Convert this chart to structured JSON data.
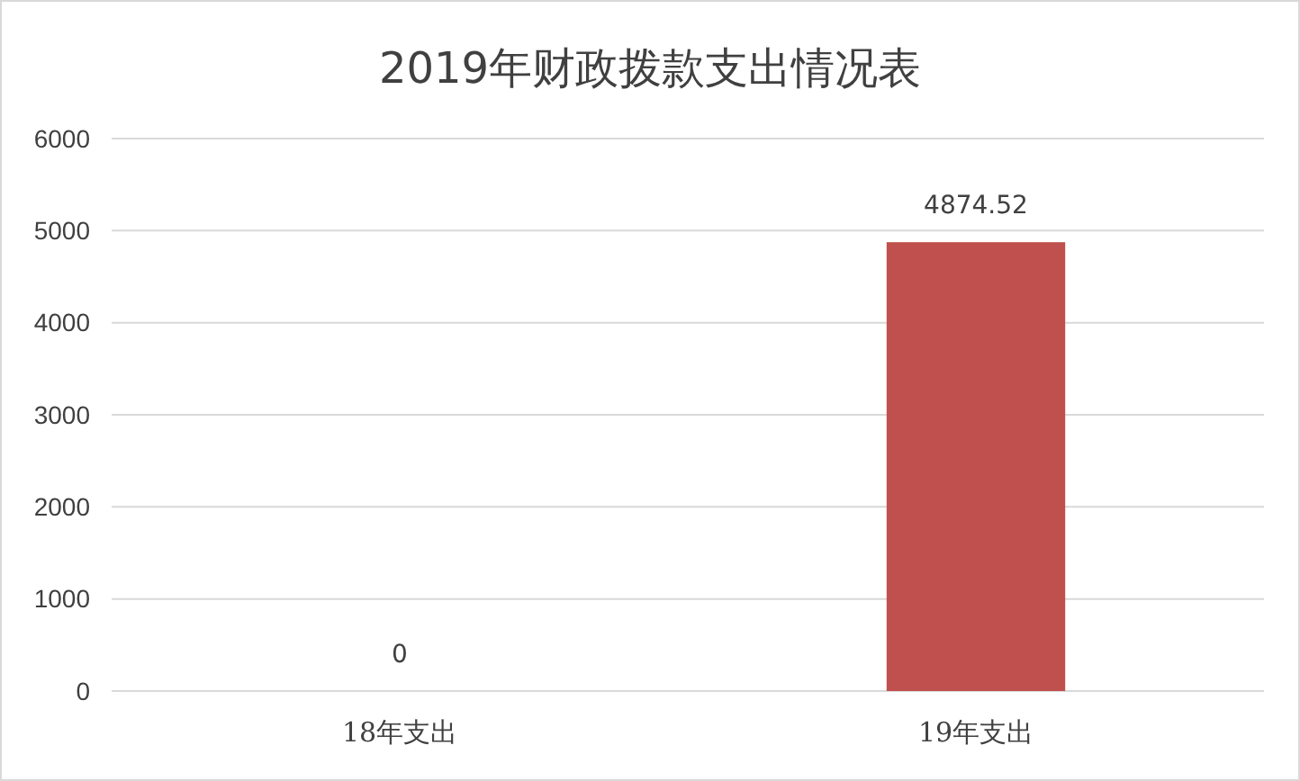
{
  "chart_data": {
    "type": "bar",
    "title": "2019年财政拨款支出情况表",
    "categories": [
      "18年支出",
      "19年支出"
    ],
    "values": [
      0,
      4874.52
    ],
    "color": "#c0504d",
    "ylim": [
      0,
      6000
    ],
    "yticks": [
      0,
      1000,
      2000,
      3000,
      4000,
      5000,
      6000
    ],
    "grid": "y",
    "data_labels": true
  }
}
